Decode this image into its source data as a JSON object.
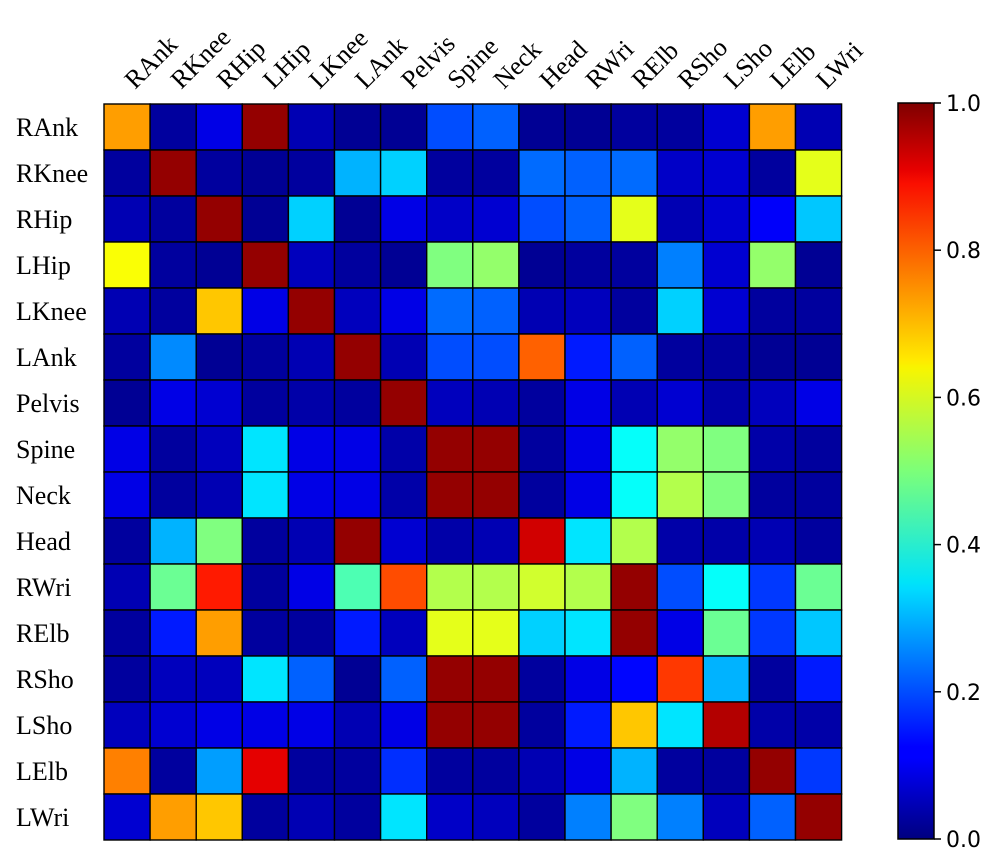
{
  "chart_data": {
    "type": "heatmap",
    "title": "",
    "columns": [
      "RAnk",
      "RKnee",
      "RHip",
      "LHip",
      "LKnee",
      "LAnk",
      "Pelvis",
      "Spine",
      "Neck",
      "Head",
      "RWri",
      "RElb",
      "RSho",
      "LSho",
      "LElb",
      "LWri"
    ],
    "rows": [
      "RAnk",
      "RKnee",
      "RHip",
      "LHip",
      "LKnee",
      "LAnk",
      "Pelvis",
      "Spine",
      "Neck",
      "Head",
      "RWri",
      "RElb",
      "RSho",
      "LSho",
      "LElb",
      "LWri"
    ],
    "values": [
      [
        0.72,
        0.03,
        0.1,
        0.98,
        0.05,
        0.02,
        0.02,
        0.2,
        0.22,
        0.02,
        0.02,
        0.03,
        0.03,
        0.08,
        0.72,
        0.05
      ],
      [
        0.03,
        0.98,
        0.03,
        0.02,
        0.03,
        0.3,
        0.33,
        0.03,
        0.03,
        0.23,
        0.22,
        0.23,
        0.07,
        0.08,
        0.03,
        0.6
      ],
      [
        0.05,
        0.03,
        0.98,
        0.02,
        0.33,
        0.02,
        0.1,
        0.07,
        0.08,
        0.2,
        0.22,
        0.6,
        0.05,
        0.08,
        0.12,
        0.32
      ],
      [
        0.62,
        0.03,
        0.02,
        0.98,
        0.06,
        0.03,
        0.02,
        0.5,
        0.52,
        0.02,
        0.03,
        0.03,
        0.25,
        0.08,
        0.52,
        0.02
      ],
      [
        0.05,
        0.03,
        0.68,
        0.1,
        0.98,
        0.06,
        0.1,
        0.23,
        0.22,
        0.05,
        0.06,
        0.03,
        0.33,
        0.08,
        0.03,
        0.03
      ],
      [
        0.03,
        0.26,
        0.02,
        0.03,
        0.05,
        0.98,
        0.05,
        0.2,
        0.2,
        0.78,
        0.15,
        0.22,
        0.03,
        0.03,
        0.02,
        0.02
      ],
      [
        0.02,
        0.1,
        0.08,
        0.03,
        0.04,
        0.03,
        0.98,
        0.06,
        0.05,
        0.03,
        0.1,
        0.05,
        0.08,
        0.04,
        0.06,
        0.1
      ],
      [
        0.1,
        0.03,
        0.06,
        0.35,
        0.1,
        0.1,
        0.04,
        0.98,
        0.98,
        0.03,
        0.1,
        0.38,
        0.52,
        0.5,
        0.04,
        0.03
      ],
      [
        0.1,
        0.03,
        0.05,
        0.35,
        0.1,
        0.1,
        0.04,
        0.98,
        0.98,
        0.03,
        0.1,
        0.38,
        0.55,
        0.5,
        0.03,
        0.03
      ],
      [
        0.03,
        0.3,
        0.5,
        0.03,
        0.05,
        0.98,
        0.08,
        0.04,
        0.05,
        0.92,
        0.35,
        0.55,
        0.04,
        0.04,
        0.05,
        0.03
      ],
      [
        0.05,
        0.48,
        0.85,
        0.03,
        0.1,
        0.45,
        0.8,
        0.55,
        0.55,
        0.58,
        0.55,
        0.98,
        0.2,
        0.38,
        0.18,
        0.48
      ],
      [
        0.03,
        0.15,
        0.72,
        0.03,
        0.03,
        0.15,
        0.06,
        0.6,
        0.6,
        0.33,
        0.35,
        0.98,
        0.1,
        0.48,
        0.18,
        0.32
      ],
      [
        0.03,
        0.06,
        0.06,
        0.35,
        0.22,
        0.02,
        0.22,
        0.98,
        0.98,
        0.03,
        0.1,
        0.13,
        0.82,
        0.3,
        0.03,
        0.15
      ],
      [
        0.06,
        0.08,
        0.1,
        0.1,
        0.1,
        0.05,
        0.1,
        0.98,
        0.98,
        0.03,
        0.15,
        0.68,
        0.35,
        0.95,
        0.04,
        0.04
      ],
      [
        0.75,
        0.03,
        0.28,
        0.9,
        0.03,
        0.03,
        0.17,
        0.03,
        0.03,
        0.05,
        0.1,
        0.3,
        0.03,
        0.03,
        0.98,
        0.18
      ],
      [
        0.08,
        0.72,
        0.68,
        0.03,
        0.05,
        0.03,
        0.35,
        0.07,
        0.06,
        0.03,
        0.25,
        0.5,
        0.25,
        0.06,
        0.22,
        0.98
      ]
    ],
    "colormap": "jet",
    "colorbar": {
      "min": 0.0,
      "max": 1.0,
      "ticks": [
        0.0,
        0.2,
        0.4,
        0.6,
        0.8,
        1.0
      ],
      "tick_labels": [
        "0.0",
        "0.2",
        "0.4",
        "0.6",
        "0.8",
        "1.0"
      ]
    },
    "xlabel": "",
    "ylabel": ""
  }
}
